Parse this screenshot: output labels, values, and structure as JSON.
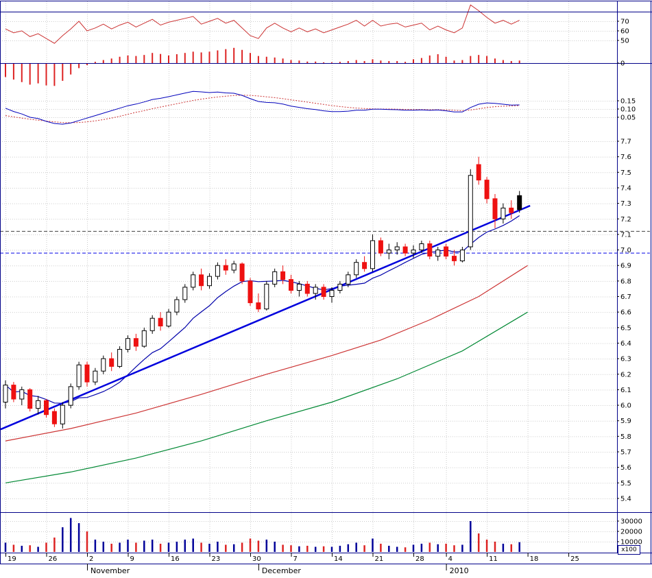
{
  "chart_data": {
    "type": "candlestick",
    "description": "Daily stock chart: RSI pane, MACD histogram pane, DIF/DEA pane, candlestick price pane with moving averages and rising trend line, volume pane",
    "x_axis": {
      "week_ticks": [
        [
          "19",
          0
        ],
        [
          "26",
          5
        ],
        [
          "2",
          10
        ],
        [
          "9",
          15
        ],
        [
          "16",
          20
        ],
        [
          "23",
          25
        ],
        [
          "30",
          30
        ],
        [
          "7",
          35
        ],
        [
          "14",
          40
        ],
        [
          "21",
          45
        ],
        [
          "28",
          50
        ],
        [
          "4",
          54
        ],
        [
          "11",
          59
        ],
        [
          "18",
          64
        ],
        [
          "25",
          69
        ]
      ],
      "month_ticks": [
        [
          "November",
          10
        ],
        [
          "December",
          31
        ],
        [
          "2010",
          54
        ]
      ]
    },
    "axes": {
      "price": {
        "max": 7.7,
        "min": 5.4,
        "step": 0.1
      },
      "rsi_ticks": [
        70,
        60,
        50
      ],
      "rsi_ref_level": 80,
      "macd_zero_label": "0",
      "dif_ticks": [
        0.15,
        0.1,
        0.05
      ],
      "volume_ticks": [
        30000,
        20000,
        10000
      ]
    },
    "volume_unit": "x100",
    "levels": [
      {
        "price": 7.12,
        "color": "#404040"
      },
      {
        "price": 6.98,
        "color": "#0000e6"
      }
    ],
    "candles": [
      [
        6.02,
        6.16,
        5.98,
        6.13
      ],
      [
        6.13,
        6.15,
        6.02,
        6.04
      ],
      [
        6.04,
        6.12,
        6.0,
        6.1
      ],
      [
        6.1,
        6.11,
        5.96,
        5.98
      ],
      [
        5.98,
        6.06,
        5.94,
        6.03
      ],
      [
        6.03,
        6.04,
        5.92,
        5.94
      ],
      [
        5.96,
        5.98,
        5.86,
        5.88
      ],
      [
        5.88,
        6.02,
        5.85,
        6.0
      ],
      [
        6.0,
        6.14,
        5.98,
        6.12
      ],
      [
        6.12,
        6.28,
        6.1,
        6.26
      ],
      [
        6.26,
        6.28,
        6.12,
        6.15
      ],
      [
        6.15,
        6.24,
        6.13,
        6.22
      ],
      [
        6.22,
        6.32,
        6.2,
        6.3
      ],
      [
        6.3,
        6.34,
        6.22,
        6.25
      ],
      [
        6.25,
        6.38,
        6.24,
        6.36
      ],
      [
        6.36,
        6.45,
        6.34,
        6.43
      ],
      [
        6.43,
        6.46,
        6.35,
        6.38
      ],
      [
        6.38,
        6.5,
        6.37,
        6.48
      ],
      [
        6.48,
        6.58,
        6.46,
        6.56
      ],
      [
        6.56,
        6.6,
        6.48,
        6.51
      ],
      [
        6.51,
        6.62,
        6.5,
        6.6
      ],
      [
        6.6,
        6.7,
        6.58,
        6.68
      ],
      [
        6.68,
        6.78,
        6.66,
        6.76
      ],
      [
        6.76,
        6.86,
        6.74,
        6.84
      ],
      [
        6.84,
        6.88,
        6.74,
        6.77
      ],
      [
        6.77,
        6.85,
        6.75,
        6.83
      ],
      [
        6.83,
        6.92,
        6.81,
        6.9
      ],
      [
        6.9,
        6.94,
        6.84,
        6.87
      ],
      [
        6.87,
        6.93,
        6.85,
        6.91
      ],
      [
        6.91,
        6.92,
        6.78,
        6.8
      ],
      [
        6.8,
        6.82,
        6.64,
        6.66
      ],
      [
        6.66,
        6.72,
        6.6,
        6.62
      ],
      [
        6.62,
        6.8,
        6.61,
        6.78
      ],
      [
        6.78,
        6.88,
        6.76,
        6.86
      ],
      [
        6.86,
        6.9,
        6.78,
        6.81
      ],
      [
        6.81,
        6.84,
        6.72,
        6.74
      ],
      [
        6.74,
        6.8,
        6.7,
        6.78
      ],
      [
        6.78,
        6.8,
        6.7,
        6.72
      ],
      [
        6.72,
        6.78,
        6.68,
        6.76
      ],
      [
        6.76,
        6.78,
        6.68,
        6.7
      ],
      [
        6.7,
        6.76,
        6.66,
        6.74
      ],
      [
        6.74,
        6.8,
        6.72,
        6.78
      ],
      [
        6.78,
        6.86,
        6.76,
        6.84
      ],
      [
        6.84,
        6.94,
        6.82,
        6.92
      ],
      [
        6.92,
        6.96,
        6.86,
        6.88
      ],
      [
        6.88,
        7.1,
        6.86,
        7.06
      ],
      [
        7.06,
        7.08,
        6.96,
        6.98
      ],
      [
        6.98,
        7.04,
        6.94,
        7.0
      ],
      [
        7.0,
        7.05,
        6.97,
        7.02
      ],
      [
        7.02,
        7.04,
        6.96,
        6.98
      ],
      [
        6.98,
        7.03,
        6.95,
        7.0
      ],
      [
        7.0,
        7.06,
        6.98,
        7.04
      ],
      [
        7.04,
        7.06,
        6.94,
        6.96
      ],
      [
        6.96,
        7.02,
        6.93,
        7.0
      ],
      [
        7.02,
        7.04,
        6.94,
        6.96
      ],
      [
        6.96,
        7.0,
        6.9,
        6.93
      ],
      [
        6.93,
        7.02,
        6.92,
        7.0
      ],
      [
        7.02,
        7.52,
        7.0,
        7.48
      ],
      [
        7.55,
        7.6,
        7.42,
        7.45
      ],
      [
        7.45,
        7.47,
        7.3,
        7.33
      ],
      [
        7.33,
        7.36,
        7.14,
        7.2
      ],
      [
        7.2,
        7.3,
        7.17,
        7.27
      ],
      [
        7.27,
        7.32,
        7.2,
        7.24
      ],
      [
        7.26,
        7.38,
        7.24,
        7.35
      ]
    ],
    "volume": [
      9000,
      7000,
      6000,
      6500,
      5000,
      9000,
      14000,
      24000,
      33000,
      28000,
      20000,
      12000,
      10000,
      8000,
      9000,
      12000,
      9000,
      11000,
      12000,
      8000,
      9000,
      10000,
      12000,
      13000,
      9000,
      8000,
      10000,
      7000,
      7500,
      9000,
      13000,
      11000,
      12000,
      10000,
      7000,
      6500,
      5500,
      6000,
      5000,
      5500,
      5000,
      6000,
      7500,
      9000,
      6500,
      13000,
      8000,
      6000,
      5000,
      4500,
      7000,
      8000,
      9000,
      7500,
      8000,
      6500,
      7000,
      30000,
      18000,
      12000,
      10000,
      8000,
      7500,
      9500
    ],
    "rsi": [
      62,
      58,
      60,
      54,
      57,
      52,
      47,
      55,
      62,
      70,
      60,
      63,
      67,
      62,
      66,
      69,
      64,
      68,
      72,
      66,
      69,
      71,
      73,
      75,
      67,
      70,
      73,
      68,
      71,
      63,
      55,
      52,
      63,
      68,
      63,
      59,
      63,
      59,
      62,
      58,
      61,
      64,
      67,
      71,
      65,
      71,
      65,
      67,
      68,
      64,
      66,
      68,
      61,
      65,
      61,
      58,
      63,
      87,
      81,
      74,
      68,
      71,
      67,
      71
    ],
    "macd_hist": [
      -0.055,
      -0.065,
      -0.075,
      -0.085,
      -0.08,
      -0.088,
      -0.09,
      -0.07,
      -0.045,
      -0.02,
      -0.008,
      0.005,
      0.012,
      0.018,
      0.025,
      0.03,
      0.028,
      0.032,
      0.04,
      0.036,
      0.03,
      0.035,
      0.04,
      0.045,
      0.042,
      0.045,
      0.05,
      0.055,
      0.06,
      0.052,
      0.04,
      0.028,
      0.025,
      0.022,
      0.018,
      0.012,
      0.01,
      0.006,
      0.006,
      0.003,
      0.003,
      0.005,
      0.008,
      0.012,
      0.008,
      0.015,
      0.01,
      0.008,
      0.008,
      0.005,
      0.015,
      0.02,
      0.03,
      0.035,
      0.025,
      0.01,
      0.012,
      0.028,
      0.032,
      0.028,
      0.018,
      0.012,
      0.008,
      0.01
    ],
    "dif": [
      0.105,
      0.085,
      0.07,
      0.05,
      0.042,
      0.025,
      0.012,
      0.008,
      0.015,
      0.03,
      0.045,
      0.06,
      0.075,
      0.09,
      0.105,
      0.12,
      0.13,
      0.143,
      0.158,
      0.165,
      0.175,
      0.186,
      0.197,
      0.207,
      0.204,
      0.2,
      0.203,
      0.198,
      0.196,
      0.183,
      0.163,
      0.146,
      0.14,
      0.138,
      0.13,
      0.118,
      0.11,
      0.102,
      0.097,
      0.089,
      0.084,
      0.084,
      0.087,
      0.093,
      0.093,
      0.099,
      0.099,
      0.097,
      0.096,
      0.093,
      0.093,
      0.095,
      0.092,
      0.094,
      0.089,
      0.082,
      0.082,
      0.109,
      0.129,
      0.137,
      0.134,
      0.129,
      0.124,
      0.125
    ],
    "dea": [
      0.06,
      0.052,
      0.045,
      0.038,
      0.032,
      0.027,
      0.022,
      0.018,
      0.017,
      0.018,
      0.022,
      0.028,
      0.036,
      0.045,
      0.056,
      0.068,
      0.08,
      0.09,
      0.102,
      0.112,
      0.122,
      0.132,
      0.142,
      0.152,
      0.16,
      0.167,
      0.173,
      0.178,
      0.182,
      0.184,
      0.183,
      0.179,
      0.174,
      0.169,
      0.163,
      0.156,
      0.149,
      0.142,
      0.135,
      0.128,
      0.121,
      0.115,
      0.11,
      0.106,
      0.103,
      0.101,
      0.1,
      0.1,
      0.099,
      0.098,
      0.097,
      0.097,
      0.096,
      0.096,
      0.095,
      0.092,
      0.09,
      0.094,
      0.101,
      0.109,
      0.114,
      0.117,
      0.119,
      0.121
    ],
    "ma_mid": {
      "points": [
        [
          0,
          5.77
        ],
        [
          8,
          5.85
        ],
        [
          16,
          5.95
        ],
        [
          24,
          6.07
        ],
        [
          32,
          6.2
        ],
        [
          40,
          6.32
        ],
        [
          46,
          6.42
        ],
        [
          52,
          6.55
        ],
        [
          58,
          6.7
        ],
        [
          64,
          6.9
        ]
      ]
    },
    "ma_long": {
      "points": [
        [
          0,
          5.5
        ],
        [
          8,
          5.57
        ],
        [
          16,
          5.66
        ],
        [
          24,
          5.77
        ],
        [
          32,
          5.9
        ],
        [
          40,
          6.02
        ],
        [
          48,
          6.17
        ],
        [
          56,
          6.35
        ],
        [
          64,
          6.6
        ]
      ]
    },
    "trend_line": {
      "points": [
        [
          -0.6,
          5.845
        ],
        [
          64.3,
          7.285
        ]
      ]
    },
    "ma_short_window": 10,
    "colors": {
      "background": "#ffffff",
      "grid": "#cccccc",
      "frame": "#000088",
      "label": "#000000",
      "rsi_line": "#cc3333",
      "hist_bar": "#dd2222",
      "dif_line": "#0000bb",
      "dea_line": "#cc3333",
      "candle_up": "#ffffff",
      "candle_up_border": "#000000",
      "candle_down": "#ee1111",
      "candle_last": "#000000",
      "ma_short": "#0000aa",
      "ma_mid": "#cc3333",
      "ma_long": "#008833",
      "trend": "#0000dd",
      "vol_up": "#000099",
      "vol_down": "#dd2222"
    }
  }
}
